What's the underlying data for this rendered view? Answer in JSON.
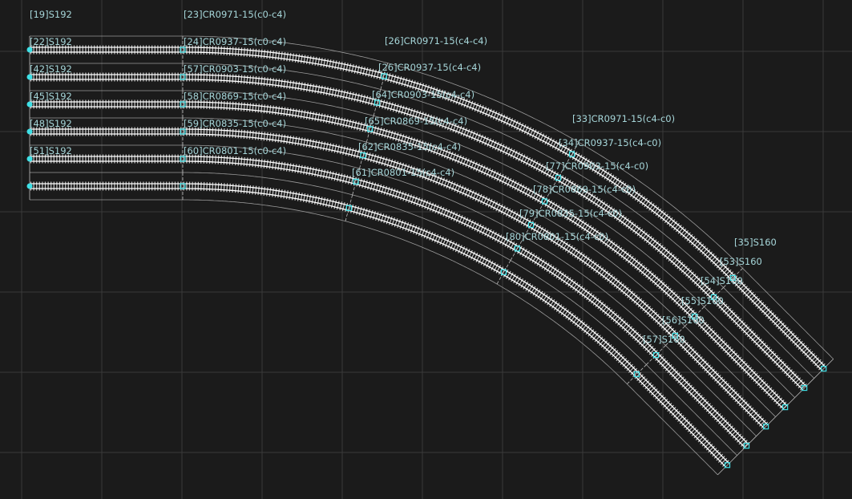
{
  "labels": [
    "[19]S192",
    "[23]CR0971-15(c0-c4)",
    "[22]S192",
    "[24]CR0937-15(c0-c4)",
    "[26]CR0971-15(c4-c4)",
    "[42]S192",
    "[57]CR0903-15(c0-c4)",
    "[26]CR0937-15(c4-c4)",
    "[45]S192",
    "[58]CR0869-15(c0-c4)",
    "[64]CR0903-15(c4-c4)",
    "[48]S192",
    "[59]CR0835-15(c0-c4)",
    "[65]CR0869-15(c4-c4)",
    "[51]S192",
    "[60]CR0801-15(c0-c4)",
    "[62]CR0835-15(c4-c4)",
    "[61]CR0801-15(c4-c4)",
    "[33]CR0971-15(c4-c0)",
    "[34]CR0937-15(c4-c0)",
    "[77]CR0903-15(c4-c0)",
    "[78]CR0869-15(c4-c0)",
    "[79]CR0835-15(c4-c0)",
    "[80]CR0801-15(c4-c0)",
    "[35]S160",
    "[53]S160",
    "[54]S160",
    "[55]S160",
    "[56]S160",
    "[57]S160"
  ]
}
